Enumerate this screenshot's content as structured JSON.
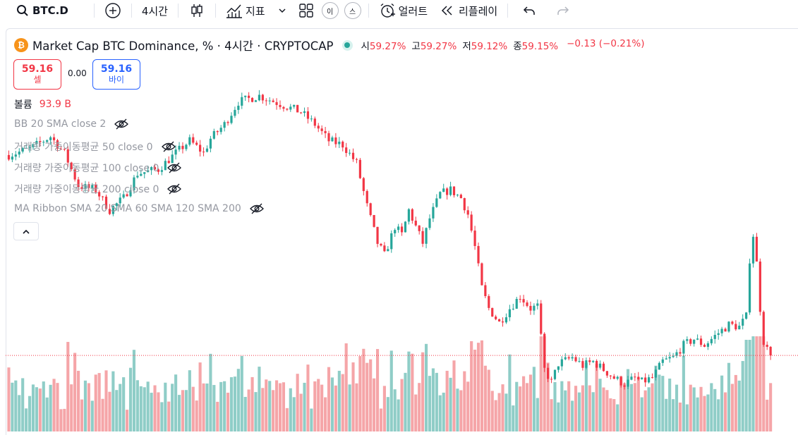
{
  "toolbar": {
    "symbol": "BTC.D",
    "interval": "4시간",
    "indicators_label": "지표",
    "small_btn_1": "이",
    "small_btn_2": "스",
    "alert_label": "얼러트",
    "replay_label": "리플레이"
  },
  "legend": {
    "title": "Market Cap BTC Dominance, % · 4시간 · CRYPTOCAP",
    "open_key": "시",
    "open": "59.27%",
    "high_key": "고",
    "high": "59.27%",
    "low_key": "저",
    "low": "59.12%",
    "close_key": "종",
    "close": "59.15%",
    "change": "−0.13 (−0.21%)"
  },
  "trade": {
    "sell_price": "59.16",
    "sell_label": "셀",
    "spread": "0.00",
    "buy_price": "59.16",
    "buy_label": "바이"
  },
  "indicators": {
    "volume_label": "볼륨",
    "volume_value": "93.9 B",
    "bb": "BB 20 SMA close 2",
    "vwma50": "거래량 가중이동평균 50 close 0",
    "vwma100": "거래량 가중이동평균 100 close 0",
    "vwma200": "거래량 가중이동평균 200 close 0",
    "ribbon": "MA Ribbon SMA 20 SMA 60 SMA 120 SMA 200"
  },
  "colors": {
    "up": "#26a69a",
    "down": "#f23645",
    "vol_up": "#8fcdc7",
    "vol_down": "#f5a5a8",
    "accent": "#2962ff"
  },
  "chart_data": {
    "type": "candlestick",
    "title": "Market Cap BTC Dominance, % · 4시간 · CRYPTOCAP",
    "unit": "%",
    "last_close": 59.15,
    "trend_path": [
      [
        0,
        64.05
      ],
      [
        6,
        64.2
      ],
      [
        12,
        64.5
      ],
      [
        16,
        64.1
      ],
      [
        20,
        63.3
      ],
      [
        25,
        63.2
      ],
      [
        29,
        62.7
      ],
      [
        33,
        63.0
      ],
      [
        37,
        63.6
      ],
      [
        43,
        63.7
      ],
      [
        48,
        64.1
      ],
      [
        52,
        64.4
      ],
      [
        56,
        64.1
      ],
      [
        58,
        64.45
      ],
      [
        62,
        64.8
      ],
      [
        66,
        65.35
      ],
      [
        72,
        65.5
      ],
      [
        78,
        65.3
      ],
      [
        84,
        65.1
      ],
      [
        88,
        64.8
      ],
      [
        92,
        64.4
      ],
      [
        96,
        64.3
      ],
      [
        100,
        63.85
      ],
      [
        103,
        62.8
      ],
      [
        106,
        61.9
      ],
      [
        108,
        61.6
      ],
      [
        111,
        62.3
      ],
      [
        113,
        62.1
      ],
      [
        115,
        62.7
      ],
      [
        119,
        61.9
      ],
      [
        121,
        62.5
      ],
      [
        124,
        63.1
      ],
      [
        127,
        63.2
      ],
      [
        130,
        63.0
      ],
      [
        132,
        62.6
      ],
      [
        134,
        61.8
      ],
      [
        136,
        60.8
      ],
      [
        138,
        60.3
      ],
      [
        141,
        59.95
      ],
      [
        144,
        60.3
      ],
      [
        147,
        60.6
      ],
      [
        150,
        60.3
      ],
      [
        152,
        60.35
      ],
      [
        154,
        58.8
      ],
      [
        156,
        58.5
      ],
      [
        158,
        58.95
      ],
      [
        162,
        59.1
      ],
      [
        165,
        58.9
      ],
      [
        168,
        59.0
      ],
      [
        171,
        58.8
      ],
      [
        174,
        58.6
      ],
      [
        177,
        58.45
      ],
      [
        180,
        58.6
      ],
      [
        182,
        58.5
      ],
      [
        185,
        58.6
      ],
      [
        188,
        59.0
      ],
      [
        191,
        59.1
      ],
      [
        194,
        59.4
      ],
      [
        197,
        59.55
      ],
      [
        200,
        59.4
      ],
      [
        204,
        59.7
      ],
      [
        207,
        59.9
      ],
      [
        210,
        59.85
      ],
      [
        212,
        60.1
      ],
      [
        213,
        61.5
      ],
      [
        214,
        62.1
      ],
      [
        215,
        61.4
      ],
      [
        216,
        60.3
      ],
      [
        217,
        59.5
      ],
      [
        218,
        59.3
      ],
      [
        219,
        59.15
      ]
    ],
    "volume_label": "볼륨",
    "volume_last": "93.9 B"
  }
}
